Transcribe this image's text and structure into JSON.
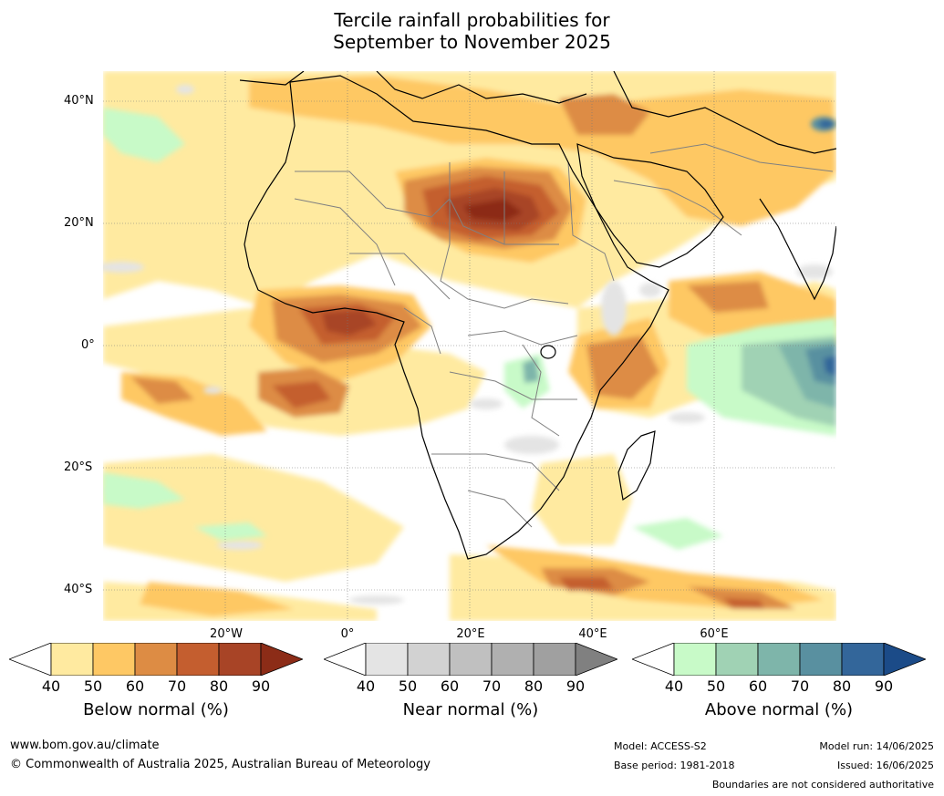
{
  "title": {
    "line1": "Tercile rainfall probabilities for",
    "line2": "September to November 2025"
  },
  "map": {
    "lat_labels": [
      "40°N",
      "20°N",
      "0°",
      "20°S",
      "40°S"
    ],
    "lon_labels": [
      "20°W",
      "0°",
      "20°E",
      "40°E",
      "60°E"
    ],
    "lat_lines": [
      40,
      20,
      0,
      -20,
      -40
    ],
    "lon_lines": [
      -20,
      0,
      20,
      40,
      60
    ],
    "extent": {
      "lon_min": -40,
      "lon_max": 80,
      "lat_min": -45,
      "lat_max": 45
    },
    "background_color": "#ffffff",
    "coastline_color": "#000000",
    "border_color": "#808080",
    "grid": true
  },
  "colorbars": [
    {
      "label": "Below normal (%)",
      "ticks": [
        "40",
        "50",
        "60",
        "70",
        "80",
        "90"
      ],
      "colors": [
        "#ffffff",
        "#ffeaa0",
        "#fec864",
        "#dd8c44",
        "#c45e2f",
        "#a84426",
        "#8c2c17"
      ]
    },
    {
      "label": "Near normal (%)",
      "ticks": [
        "40",
        "50",
        "60",
        "70",
        "80",
        "90"
      ],
      "colors": [
        "#ffffff",
        "#e4e4e4",
        "#d2d2d2",
        "#c0c0c0",
        "#b0b0b0",
        "#a0a0a0",
        "#808080"
      ]
    },
    {
      "label": "Above normal (%)",
      "ticks": [
        "40",
        "50",
        "60",
        "70",
        "80",
        "90"
      ],
      "colors": [
        "#ffffff",
        "#c8fac8",
        "#a0d2b4",
        "#7eb5aa",
        "#5990a0",
        "#33669a",
        "#1b4b88"
      ]
    }
  ],
  "footer": {
    "website": "www.bom.gov.au/climate",
    "copyright": "© Commonwealth of Australia 2025, Australian Bureau of Meteorology",
    "model": "Model: ACCESS-S2",
    "base_period": "Base period: 1981-2018",
    "model_run": "Model run: 14/06/2025",
    "issued": "Issued: 16/06/2025",
    "boundaries": "Boundaries are not considered authoritative"
  }
}
